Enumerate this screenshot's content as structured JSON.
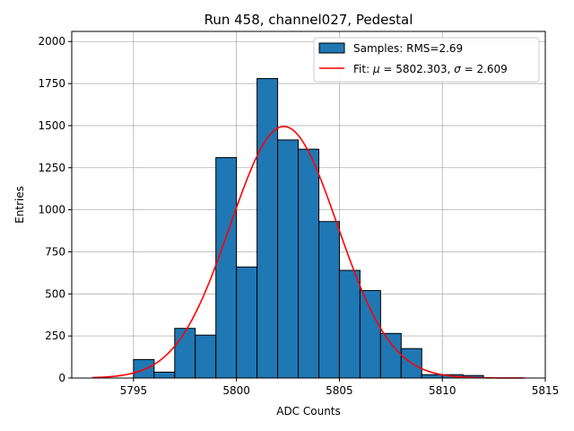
{
  "chart_data": {
    "type": "bar",
    "title": "Run 458, channel027, Pedestal",
    "xlabel": "ADC Counts",
    "ylabel": "Entries",
    "xlim": [
      5792.0,
      5815.0
    ],
    "ylim": [
      0,
      2060
    ],
    "xticks": [
      5795,
      5800,
      5805,
      5810,
      5815
    ],
    "yticks": [
      0,
      250,
      500,
      750,
      1000,
      1250,
      1500,
      1750,
      2000
    ],
    "grid": true,
    "legend_position": "top-right",
    "bins": {
      "left_edges": [
        5793,
        5794,
        5795,
        5796,
        5797,
        5798,
        5799,
        5800,
        5801,
        5802,
        5803,
        5804,
        5805,
        5806,
        5807,
        5808,
        5809,
        5810,
        5811,
        5812,
        5813
      ],
      "width": 1,
      "counts": [
        0,
        0,
        110,
        35,
        295,
        255,
        1310,
        660,
        1780,
        1415,
        1360,
        930,
        640,
        520,
        265,
        175,
        20,
        20,
        15,
        0,
        0
      ]
    },
    "series": [
      {
        "name": "Samples: RMS=2.69",
        "kind": "histogram",
        "color": "#1f77b4",
        "edge_color": "#000000"
      },
      {
        "name": "Fit: μ = 5802.303, σ = 2.609",
        "kind": "gaussian",
        "color": "#ff0000",
        "mu": 5802.303,
        "sigma": 2.609,
        "amplitude": 1495,
        "x_range": [
          5793,
          5814
        ]
      }
    ],
    "legend": {
      "samples_label_text": "Samples: RMS=2.69",
      "fit_label_prefix": "Fit: ",
      "fit_mu_symbol": "μ",
      "fit_mu_value": " = 5802.303, ",
      "fit_sigma_symbol": "σ",
      "fit_sigma_value": " = 2.609"
    }
  }
}
